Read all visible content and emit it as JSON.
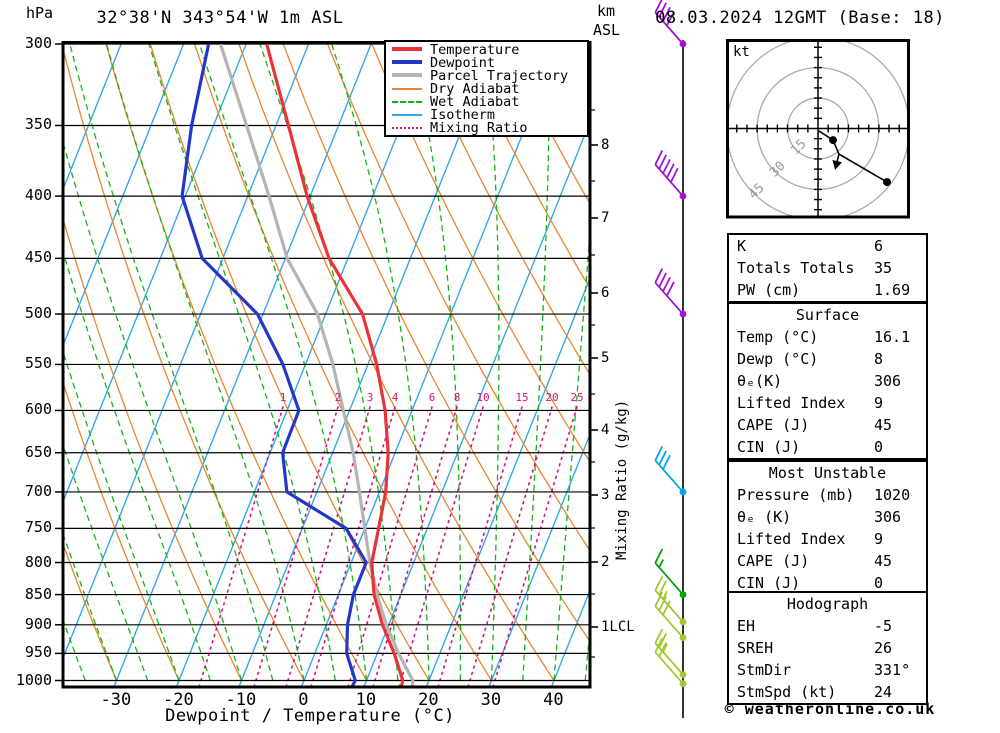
{
  "header": {
    "pressure_unit": "hPa",
    "station_title": "32°38'N 343°54'W 1m ASL",
    "altitude_unit_top": "km",
    "altitude_unit_bottom": "ASL",
    "datetime_title": "08.03.2024 12GMT (Base: 18)"
  },
  "axes": {
    "pressure_ticks": [
      300,
      350,
      400,
      450,
      500,
      550,
      600,
      650,
      700,
      750,
      800,
      850,
      900,
      950,
      1000
    ],
    "temperature_ticks": [
      -30,
      -20,
      -10,
      0,
      10,
      20,
      30,
      40
    ],
    "xaxis_title": "Dewpoint / Temperature (°C)",
    "km_labels": [
      "8",
      "7",
      "6",
      "5",
      "4",
      "3",
      "2",
      "1LCL"
    ],
    "mixing_axis_title": "Mixing Ratio (g/kg)",
    "mixing_ratio_values": [
      "1",
      "2",
      "3",
      "4",
      "6",
      "8",
      "10",
      "15",
      "20",
      "25"
    ]
  },
  "legend": {
    "items": [
      {
        "label": "Temperature",
        "color": "#ec3237",
        "weight": 4,
        "style": "solid"
      },
      {
        "label": "Dewpoint",
        "color": "#2438c8",
        "weight": 4,
        "style": "solid"
      },
      {
        "label": "Parcel Trajectory",
        "color": "#b4b4b4",
        "weight": 4,
        "style": "solid"
      },
      {
        "label": "Dry Adiabat",
        "color": "#e8872e",
        "weight": 2,
        "style": "solid"
      },
      {
        "label": "Wet Adiabat",
        "color": "#16b316",
        "weight": 2,
        "style": "dashed"
      },
      {
        "label": "Isotherm",
        "color": "#35a6e8",
        "weight": 2,
        "style": "solid"
      },
      {
        "label": "Mixing Ratio",
        "color": "#d9117c",
        "weight": 2,
        "style": "dotted"
      }
    ]
  },
  "chart_data": {
    "type": "skewt_log_p",
    "pressure_range_hpa": [
      300,
      1000
    ],
    "temperature_axis_range_c": [
      -40,
      40
    ],
    "isotherm_step_c": 10,
    "dry_adiabat_step_c": 10,
    "wet_adiabat_step_c": 5,
    "series": [
      {
        "name": "Temperature",
        "color": "#ec3237",
        "points_p_t": [
          [
            300,
            -46.7
          ],
          [
            350,
            -38.0
          ],
          [
            400,
            -30.5
          ],
          [
            450,
            -23.0
          ],
          [
            500,
            -14.1
          ],
          [
            550,
            -8.6
          ],
          [
            600,
            -4.3
          ],
          [
            650,
            -1.1
          ],
          [
            700,
            1.0
          ],
          [
            750,
            2.2
          ],
          [
            800,
            3.3
          ],
          [
            850,
            5.7
          ],
          [
            900,
            9.0
          ],
          [
            950,
            12.7
          ],
          [
            1000,
            15.8
          ],
          [
            1020,
            16.1
          ]
        ]
      },
      {
        "name": "Dewpoint",
        "color": "#2438c8",
        "points_p_t": [
          [
            300,
            -56.0
          ],
          [
            350,
            -53.5
          ],
          [
            400,
            -50.5
          ],
          [
            450,
            -43.3
          ],
          [
            500,
            -30.9
          ],
          [
            550,
            -23.6
          ],
          [
            600,
            -18.1
          ],
          [
            650,
            -18.0
          ],
          [
            700,
            -14.8
          ],
          [
            750,
            -3.0
          ],
          [
            800,
            2.4
          ],
          [
            850,
            2.4
          ],
          [
            900,
            3.4
          ],
          [
            950,
            5.1
          ],
          [
            1000,
            8.2
          ],
          [
            1020,
            8.0
          ]
        ]
      },
      {
        "name": "Parcel Trajectory",
        "color": "#b4b4b4",
        "points_p_t": [
          [
            300,
            -54.1
          ],
          [
            350,
            -44.7
          ],
          [
            400,
            -36.6
          ],
          [
            450,
            -29.7
          ],
          [
            500,
            -21.3
          ],
          [
            550,
            -15.6
          ],
          [
            600,
            -11.0
          ],
          [
            650,
            -6.7
          ],
          [
            700,
            -3.2
          ],
          [
            750,
            0.0
          ],
          [
            800,
            3.0
          ],
          [
            850,
            6.2
          ],
          [
            900,
            9.6
          ],
          [
            950,
            13.4
          ],
          [
            1000,
            17.4
          ],
          [
            1020,
            18.0
          ]
        ]
      }
    ]
  },
  "wind_barbs": {
    "levels": [
      {
        "p": 300,
        "color": "#a014d2",
        "full": 4,
        "half": 0
      },
      {
        "p": 400,
        "color": "#a014d2",
        "full": 5,
        "half": 0
      },
      {
        "p": 500,
        "color": "#a014d2",
        "full": 4,
        "half": 0
      },
      {
        "p": 700,
        "color": "#00a8e8",
        "full": 3,
        "half": 0
      },
      {
        "p": 850,
        "color": "#08a008",
        "full": 1,
        "half": 1
      },
      {
        "p": 895,
        "color": "#a2c832",
        "full": 2,
        "half": 1
      },
      {
        "p": 922,
        "color": "#a2c832",
        "full": 3,
        "half": 0
      },
      {
        "p": 989,
        "color": "#a2c832",
        "full": 2,
        "half": 1
      },
      {
        "p": 1006,
        "color": "#a2c832",
        "full": 2,
        "half": 0
      }
    ]
  },
  "hodograph": {
    "unit": "kt",
    "rings_kt": [
      15,
      30,
      45
    ],
    "tick_step_kt": 5,
    "trace_kt": [
      [
        0.5,
        1.2
      ],
      [
        7.4,
        5.7
      ],
      [
        10.3,
        12.6
      ],
      [
        8.9,
        18.5
      ]
    ],
    "tail_kt": [
      [
        10.3,
        12.6
      ],
      [
        34.0,
        26.4
      ]
    ],
    "dots_kt": [
      [
        7.4,
        5.7
      ],
      [
        34.0,
        26.4
      ]
    ]
  },
  "tables": [
    {
      "title": null,
      "rows": [
        [
          "K",
          "6"
        ],
        [
          "Totals Totals",
          "35"
        ],
        [
          "PW (cm)",
          "1.69"
        ]
      ]
    },
    {
      "title": "Surface",
      "rows": [
        [
          "Temp (°C)",
          "16.1"
        ],
        [
          "Dewp (°C)",
          "8"
        ],
        [
          "θₑ(K)",
          "306"
        ],
        [
          "Lifted Index",
          "9"
        ],
        [
          "CAPE (J)",
          "45"
        ],
        [
          "CIN (J)",
          "0"
        ]
      ]
    },
    {
      "title": "Most Unstable",
      "rows": [
        [
          "Pressure (mb)",
          "1020"
        ],
        [
          "θₑ (K)",
          "306"
        ],
        [
          "Lifted Index",
          "9"
        ],
        [
          "CAPE (J)",
          "45"
        ],
        [
          "CIN (J)",
          "0"
        ]
      ]
    },
    {
      "title": "Hodograph",
      "rows": [
        [
          "EH",
          "-5"
        ],
        [
          "SREH",
          "26"
        ],
        [
          "StmDir",
          "331°"
        ],
        [
          "StmSpd (kt)",
          "24"
        ]
      ]
    }
  ],
  "footer": {
    "copyright": "© weatheronline.co.uk"
  }
}
